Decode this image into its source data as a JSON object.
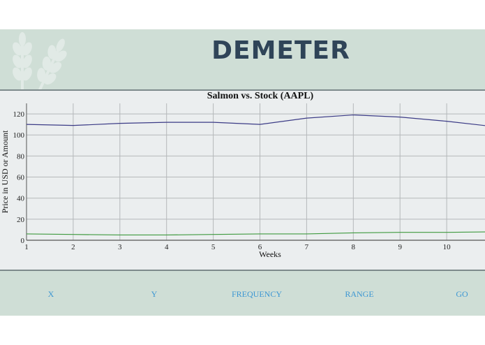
{
  "header": {
    "logo_text": "DEMETER",
    "logo_icon": "wheat-icon"
  },
  "chart_data": {
    "type": "line",
    "title": "Salmon vs. Stock (AAPL)",
    "xlabel": "Weeks",
    "ylabel": "Price in USD or Amount",
    "x": [
      1,
      2,
      3,
      4,
      5,
      6,
      7,
      8,
      9,
      10,
      11
    ],
    "xticks": [
      1,
      2,
      3,
      4,
      5,
      6,
      7,
      8,
      9,
      10
    ],
    "yticks": [
      0,
      20,
      40,
      60,
      80,
      100,
      120
    ],
    "ylim": [
      0,
      130
    ],
    "xlim": [
      1,
      10.83
    ],
    "grid": true,
    "series": [
      {
        "color": "#3b3b86",
        "values": [
          110,
          109,
          111,
          112,
          112,
          110,
          116,
          119,
          117,
          113,
          108
        ]
      },
      {
        "color": "#3f9a3f",
        "values": [
          6,
          5.5,
          5,
          5,
          5.5,
          6,
          6,
          7,
          7.5,
          7.5,
          8
        ]
      }
    ]
  },
  "controls": [
    {
      "label": "X"
    },
    {
      "label": "Y"
    },
    {
      "label": "FREQUENCY"
    },
    {
      "label": "RANGE"
    },
    {
      "label": "GO"
    }
  ]
}
